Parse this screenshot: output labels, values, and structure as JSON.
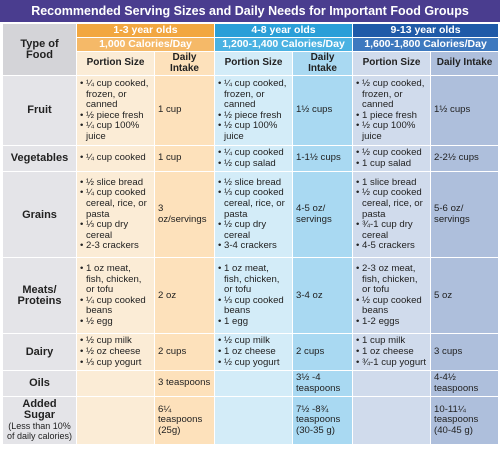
{
  "title": "Recommended Serving Sizes and Daily Needs for Important Food Groups",
  "type_header": "Type of Food",
  "groups": [
    {
      "age": "1-3 year olds",
      "calories": "1,000 Calories/Day"
    },
    {
      "age": "4-8 year olds",
      "calories": "1,200-1,400 Calories/Day"
    },
    {
      "age": "9-13 year olds",
      "calories": "1,600-1,800 Calories/Day"
    }
  ],
  "portion_label": "Portion Size",
  "intake_label": "Daily Intake",
  "rows": [
    {
      "label": "Fruit",
      "sub": "",
      "cells": [
        {
          "portion": [
            "¼ cup cooked, frozen, or canned",
            "½ piece fresh",
            "¼ cup 100% juice"
          ],
          "intake": "1 cup"
        },
        {
          "portion": [
            "¼ cup cooked, frozen, or canned",
            "½ piece fresh",
            "½ cup 100% juice"
          ],
          "intake": "1½ cups"
        },
        {
          "portion": [
            "½ cup cooked, frozen, or canned",
            "1 piece fresh",
            "½ cup 100% juice"
          ],
          "intake": "1½ cups"
        }
      ]
    },
    {
      "label": "Vegetables",
      "sub": "",
      "cells": [
        {
          "portion": [
            "¼ cup cooked"
          ],
          "intake": "1 cup"
        },
        {
          "portion": [
            "¼ cup cooked",
            "½ cup salad"
          ],
          "intake": "1-1½ cups"
        },
        {
          "portion": [
            "½ cup cooked",
            "1 cup salad"
          ],
          "intake": "2-2½ cups"
        }
      ]
    },
    {
      "label": "Grains",
      "sub": "",
      "cells": [
        {
          "portion": [
            "½ slice bread",
            "¼ cup cooked cereal, rice, or pasta",
            "⅓ cup dry cereal",
            "2-3 crackers"
          ],
          "intake": "3 oz/servings"
        },
        {
          "portion": [
            "½ slice bread",
            "⅓ cup cooked cereal, rice, or pasta",
            "½ cup dry cereal",
            "3-4 crackers"
          ],
          "intake": "4-5 oz/ servings"
        },
        {
          "portion": [
            "1 slice bread",
            "½ cup cooked cereal, rice, or pasta",
            "¾-1 cup dry cereal",
            "4-5 crackers"
          ],
          "intake": "5-6 oz/ servings"
        }
      ]
    },
    {
      "label": "Meats/ Proteins",
      "sub": "",
      "cells": [
        {
          "portion": [
            "1 oz meat, fish, chicken, or tofu",
            "¼ cup cooked beans",
            "½ egg"
          ],
          "intake": "2 oz"
        },
        {
          "portion": [
            "1 oz meat, fish, chicken, or tofu",
            "⅓ cup cooked beans",
            "1 egg"
          ],
          "intake": "3-4 oz"
        },
        {
          "portion": [
            "2-3 oz meat, fish, chicken, or tofu",
            "½ cup cooked beans",
            "1-2 eggs"
          ],
          "intake": "5 oz"
        }
      ]
    },
    {
      "label": "Dairy",
      "sub": "",
      "cells": [
        {
          "portion": [
            "½ cup milk",
            "½ oz cheese",
            "⅓ cup yogurt"
          ],
          "intake": "2 cups"
        },
        {
          "portion": [
            "½ cup milk",
            "1 oz cheese",
            "½ cup yogurt"
          ],
          "intake": "2 cups"
        },
        {
          "portion": [
            "1 cup milk",
            "1 oz cheese",
            "¾-1 cup yogurt"
          ],
          "intake": "3 cups"
        }
      ]
    },
    {
      "label": "Oils",
      "sub": "",
      "cells": [
        {
          "portion": [],
          "intake": "3 teaspoons"
        },
        {
          "portion": [],
          "intake": "3½ -4 teaspoons"
        },
        {
          "portion": [],
          "intake": "4-4½ teaspoons"
        }
      ]
    },
    {
      "label": "Added Sugar",
      "sub": "(Less than 10% of daily calories)",
      "cells": [
        {
          "portion": [],
          "intake": "6¼ teaspoons (25g)"
        },
        {
          "portion": [],
          "intake": "7½ -8¾ teaspoons (30-35 g)"
        },
        {
          "portion": [],
          "intake": "10-11¼ teaspoons (40-45 g)"
        }
      ]
    }
  ]
}
